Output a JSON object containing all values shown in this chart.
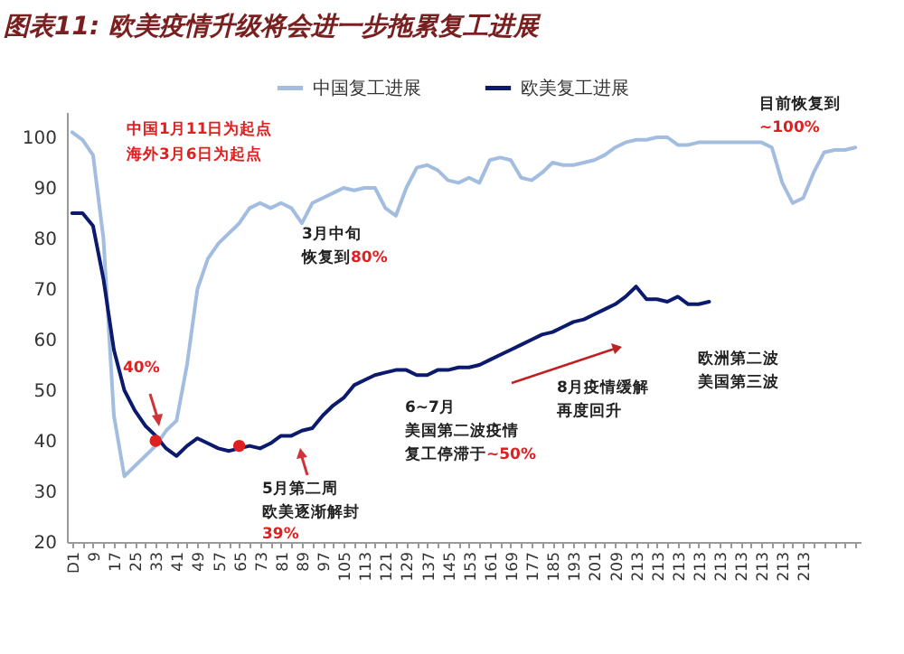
{
  "chart_data": {
    "type": "line",
    "title": "图表11: 欧美疫情升级将会进一步拖累复工进展",
    "categories": [
      "D1",
      null,
      "9",
      null,
      "17",
      null,
      "25",
      null,
      "33",
      null,
      "41",
      null,
      "49",
      null,
      "57",
      null,
      "65",
      null,
      "73",
      null,
      "81",
      null,
      "89",
      null,
      "97",
      null,
      "105",
      null,
      "113",
      null,
      "121",
      null,
      "129",
      null,
      "137",
      null,
      "145",
      null,
      "153",
      null,
      "161",
      null,
      "169",
      null,
      "177",
      null,
      "185",
      null,
      "193",
      null,
      "201",
      null,
      "209",
      null,
      "213",
      null,
      "213",
      null,
      "213",
      null,
      "213",
      null,
      "213",
      null,
      "213",
      null,
      "213",
      null,
      "213",
      null,
      "213",
      null,
      null,
      null,
      null,
      null
    ],
    "series": [
      {
        "name": "中国复工进展",
        "color": "#a3bde0",
        "values": [
          101,
          99.5,
          96.5,
          80,
          45,
          33,
          35,
          37,
          39,
          42,
          44,
          55,
          70,
          76,
          79,
          81,
          83,
          86,
          87,
          86,
          87,
          86,
          83,
          87,
          88,
          89,
          90,
          89.5,
          90,
          90,
          86,
          84.5,
          90,
          94,
          94.5,
          93.5,
          91.5,
          91,
          92,
          91,
          95.5,
          96,
          95.5,
          92,
          91.5,
          93,
          95,
          94.5,
          94.5,
          95,
          95.5,
          96.5,
          98,
          99,
          99.5,
          99.5,
          100,
          100,
          98.5,
          98.5,
          99,
          99,
          99,
          99,
          99,
          99,
          99,
          98,
          91,
          87,
          88,
          93,
          97,
          97.5,
          97.5,
          98
        ]
      },
      {
        "name": "欧美复工进展",
        "color": "#0c1a6e",
        "values": [
          85,
          85,
          82.5,
          72,
          58,
          50,
          46,
          43,
          41,
          38.5,
          37,
          39,
          40.5,
          39.5,
          38.5,
          38,
          38.5,
          39,
          38.5,
          39.5,
          41,
          41,
          42,
          42.5,
          45,
          47,
          48.5,
          51,
          52,
          53,
          53.5,
          54,
          54,
          53,
          53,
          54,
          54,
          54.5,
          54.5,
          55,
          56,
          57,
          58,
          59,
          60,
          61,
          61.5,
          62.5,
          63.5,
          64,
          65,
          66,
          67,
          68.5,
          70.5,
          68,
          68,
          67.5,
          68.5,
          67,
          67,
          67.5,
          null,
          null,
          null,
          null,
          null,
          null,
          null,
          null,
          null,
          null,
          null,
          null,
          null,
          null
        ]
      },
      {
        "type": "scatter",
        "color": "#e02020",
        "marker": "circle",
        "values": [
          null,
          null,
          null,
          null,
          null,
          null,
          null,
          null,
          40,
          null,
          null,
          null,
          null,
          null,
          null,
          null,
          39,
          null,
          null,
          null,
          null,
          null,
          null,
          null,
          null,
          null,
          null,
          null,
          null,
          null,
          null,
          null,
          null,
          null,
          null,
          null,
          null,
          null,
          null,
          null,
          null,
          null,
          null,
          null,
          null,
          null,
          null,
          null,
          null,
          null,
          null,
          null,
          null,
          null,
          null,
          null,
          null,
          null,
          null,
          null,
          null,
          null,
          null,
          null,
          null,
          null,
          null,
          null,
          null,
          null,
          null,
          null,
          null,
          null,
          null,
          null
        ]
      }
    ],
    "ylim": [
      20,
      105
    ],
    "yticks": [
      20,
      30,
      40,
      50,
      60,
      70,
      80,
      90,
      100
    ],
    "grid": false,
    "legend": "top",
    "annotations": [
      "中国1月11日为起点",
      "海外3月6日为起点",
      "3月中旬",
      "恢复到80%",
      "40%",
      "5月第二周",
      "欧美逐渐解封",
      "39%",
      "6~7月",
      "美国第二波疫情",
      "复工停滞于~50%",
      "8月疫情缓解",
      "再度回升",
      "欧洲第二波",
      "美国第三波",
      "目前恢复到",
      "~100%"
    ]
  }
}
